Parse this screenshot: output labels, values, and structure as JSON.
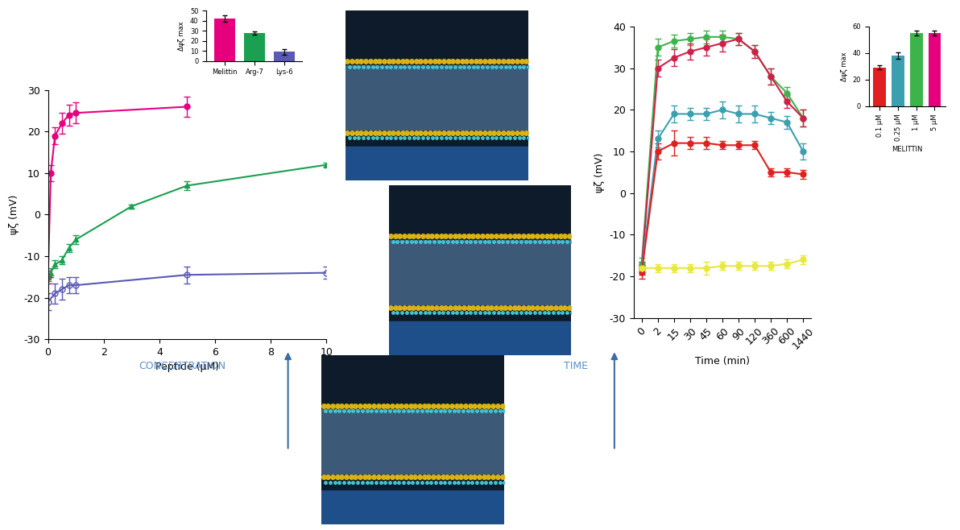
{
  "chart_data": [
    {
      "type": "line",
      "xlabel": "Peptide (μM)",
      "ylabel": "ψζ (mV)",
      "xlim": [
        0,
        10
      ],
      "xticks": [
        0,
        2,
        4,
        6,
        8,
        10
      ],
      "ylim": [
        -30,
        30
      ],
      "yticks": [
        -30,
        -20,
        -10,
        0,
        10,
        20,
        30
      ],
      "grid": false,
      "series": [
        {
          "color": "#e6007e",
          "marker": "circle",
          "line_style": "solid",
          "x": [
            0,
            0.1,
            0.25,
            0.5,
            0.75,
            1,
            5
          ],
          "values": [
            -15,
            10,
            19,
            22,
            24,
            24.5,
            26
          ],
          "error": [
            1.5,
            2,
            2,
            2.5,
            2.5,
            2.5,
            2.5
          ]
        },
        {
          "color": "#1aa050",
          "marker": "triangle",
          "line_style": "solid",
          "x": [
            0,
            0.1,
            0.25,
            0.5,
            0.75,
            1,
            3,
            5,
            10
          ],
          "values": [
            -15,
            -14,
            -12,
            -11,
            -8,
            -6,
            2,
            7,
            12
          ],
          "error": [
            1,
            1,
            1,
            1,
            1,
            1,
            0.5,
            1,
            0.5
          ]
        },
        {
          "color": "#5a5ab4",
          "marker": "open_circle",
          "line_style": "solid",
          "x": [
            0,
            0.25,
            0.5,
            0.75,
            1,
            5,
            10
          ],
          "values": [
            -21,
            -19,
            -18,
            -17,
            -17,
            -14.5,
            -14
          ],
          "error": [
            2,
            2.5,
            2.5,
            2,
            2,
            2,
            1.5
          ]
        }
      ]
    },
    {
      "type": "bar",
      "ylabel": "Δψζ max",
      "categories": [
        "Melittin",
        "Arg-7",
        "Lys-6"
      ],
      "values": [
        42,
        28,
        9
      ],
      "error": [
        3,
        1.5,
        3
      ],
      "colors": [
        "#e6007e",
        "#1aa050",
        "#5a5ab4"
      ],
      "ylim": [
        0,
        50
      ],
      "yticks": [
        0,
        10,
        20,
        30,
        40,
        50
      ]
    },
    {
      "type": "line",
      "xlabel": "Time (min)",
      "ylabel": "ψζ (mV)",
      "categories": [
        "0",
        "2",
        "15",
        "30",
        "45",
        "60",
        "90",
        "120",
        "360",
        "600",
        "1440"
      ],
      "ylim": [
        -30,
        40
      ],
      "yticks": [
        -30,
        -20,
        -10,
        0,
        10,
        20,
        30,
        40
      ],
      "grid": false,
      "series": [
        {
          "color": "#3cb44b",
          "marker": "circle",
          "line_style": "solid",
          "values": [
            -17,
            35,
            36.5,
            37,
            37.5,
            37.5,
            37,
            34,
            28,
            24,
            18
          ],
          "error": [
            1.5,
            2,
            1.5,
            1.5,
            1.5,
            1.5,
            1.5,
            1.5,
            2,
            1.5,
            2
          ]
        },
        {
          "color": "#d0204a",
          "marker": "circle",
          "line_style": "solid",
          "values": [
            -18,
            30,
            32.5,
            34,
            35,
            36,
            37,
            34,
            28,
            22,
            18
          ],
          "error": [
            1.5,
            2,
            2,
            2,
            2,
            2,
            1.5,
            1.5,
            2,
            1.5,
            2
          ]
        },
        {
          "color": "#3aa0b0",
          "marker": "circle",
          "line_style": "solid",
          "values": [
            -18,
            13,
            19,
            19,
            19,
            20,
            19,
            19,
            18,
            17,
            10
          ],
          "error": [
            1.5,
            2,
            2,
            1.5,
            1.5,
            2,
            2,
            2,
            1.5,
            1.5,
            2
          ]
        },
        {
          "color": "#e02020",
          "marker": "circle",
          "line_style": "solid",
          "values": [
            -19,
            10,
            12,
            12,
            12,
            11.5,
            11.5,
            11.5,
            5,
            5,
            4.5
          ],
          "error": [
            1.5,
            2,
            3,
            1.5,
            1.5,
            1,
            1,
            1,
            1,
            1,
            1
          ]
        },
        {
          "color": "#e8e840",
          "marker": "circle",
          "line_style": "solid",
          "values": [
            -18,
            -18,
            -18,
            -18,
            -18,
            -17.5,
            -17.5,
            -17.5,
            -17.5,
            -17,
            -16
          ],
          "error": [
            1,
            1,
            1,
            1,
            1.5,
            1,
            1,
            1,
            1,
            1,
            1
          ]
        }
      ]
    },
    {
      "type": "bar",
      "ylabel": "Δψζ max",
      "xlabel": "MELITTIN",
      "categories": [
        "0.1 μM",
        "0.25 μM",
        "1 μM",
        "5 μM"
      ],
      "values": [
        29,
        38,
        55,
        55
      ],
      "error": [
        1.5,
        2.5,
        2,
        2
      ],
      "colors": [
        "#e02020",
        "#3aa0b0",
        "#3cb44b",
        "#e6007e"
      ],
      "ylim": [
        0,
        60
      ],
      "yticks": [
        0,
        20,
        40,
        60
      ]
    }
  ],
  "annotations": [
    "CONCENTRATION",
    "TIME"
  ]
}
